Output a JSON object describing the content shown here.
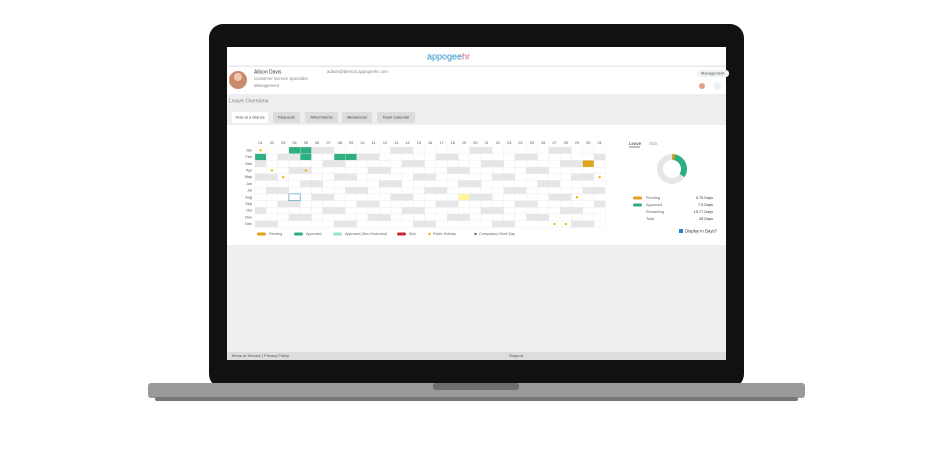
{
  "brand": {
    "name": "appogee",
    "suffix": "hr"
  },
  "profile": {
    "name": "Alison Davis",
    "job_title": "Customer Service Specialist",
    "department": "Management",
    "email": "adavis@demo2.appogeehr.com",
    "role_button": "Management"
  },
  "section_title": "Leave Overview",
  "tabs": [
    "Year at a Glance",
    "Requests",
    "Attachments",
    "Allowances",
    "Team Calendar"
  ],
  "calendar": {
    "days": [
      "01",
      "02",
      "03",
      "04",
      "05",
      "06",
      "07",
      "08",
      "09",
      "10",
      "11",
      "12",
      "13",
      "14",
      "15",
      "16",
      "17",
      "18",
      "19",
      "20",
      "21",
      "22",
      "23",
      "24",
      "25",
      "26",
      "27",
      "28",
      "29",
      "30",
      "31"
    ],
    "months": [
      "Jan",
      "Feb",
      "Mar",
      "Apr",
      "May",
      "Jun",
      "Jul",
      "Aug",
      "Sep",
      "Oct",
      "Nov",
      "Dec"
    ]
  },
  "legend": [
    "Pending",
    "Approved",
    "Approved (Non-Deducted)",
    "Sick",
    "Public Holiday",
    "Compulsory Work Day"
  ],
  "summary": {
    "tabs": [
      "Leave",
      "Sick"
    ],
    "rows": [
      {
        "label": "Pending",
        "value": "0.75 Days"
      },
      {
        "label": "Approved",
        "value": "7.5 Days"
      },
      {
        "label": "Remaining",
        "value": "15.77 Days"
      },
      {
        "label": "Total",
        "value": "28 Days"
      }
    ],
    "checkbox": "Display in Days?"
  },
  "footer": {
    "links": "Terms of Service | Privacy Policy",
    "support": "Support"
  }
}
